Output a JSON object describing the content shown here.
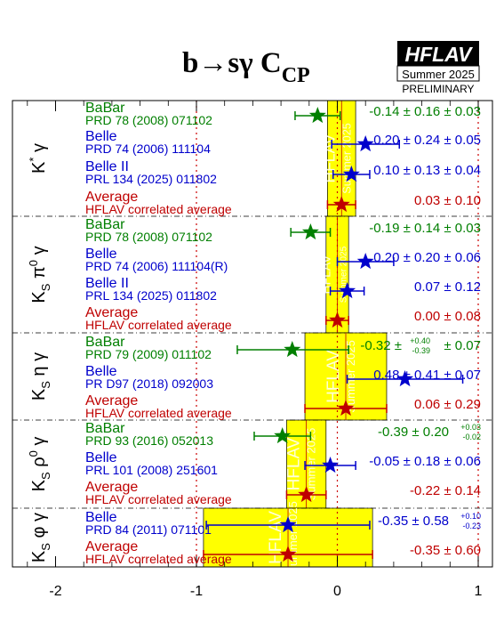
{
  "header": {
    "title_main": "b→sγ C",
    "title_sub": "CP",
    "logo_text": "HFLAV",
    "logo_season": "Summer 2025",
    "logo_status": "PRELIMINARY"
  },
  "chart_data": {
    "type": "forest",
    "xlim": [
      -2.3,
      1.25
    ],
    "x_ticks": [
      -2,
      -1,
      0,
      1
    ],
    "x_tick_labels": [
      "-2",
      "-1",
      "0",
      "1"
    ],
    "reference_lines": [
      -1,
      0,
      1
    ],
    "band_watermark": [
      "HFLAV",
      "Summer 2025"
    ],
    "groups": [
      {
        "label": "K* γ",
        "label_parts": {
          "base": "K",
          "sup": "*",
          "tail": " γ"
        },
        "band": {
          "center": 0.03,
          "err": 0.1
        },
        "entries": [
          {
            "experiment": "BaBar",
            "ref": "PRD 78 (2008) 071102",
            "value": -0.14,
            "stat": 0.16,
            "syst": 0.03,
            "result_text": "-0.14 ± 0.16 ± 0.03",
            "color": "#007f00",
            "marker": "star"
          },
          {
            "experiment": "Belle",
            "ref": "PRD 74 (2006) 111104",
            "value": 0.2,
            "stat": 0.24,
            "syst": 0.05,
            "result_text": "0.20 ± 0.24 ± 0.05",
            "color": "#0000cc",
            "marker": "star"
          },
          {
            "experiment": "Belle II",
            "ref": "PRL 134 (2025) 011802",
            "value": 0.1,
            "stat": 0.13,
            "syst": 0.04,
            "result_text": "0.10 ± 0.13 ± 0.04",
            "color": "#0000cc",
            "marker": "star"
          },
          {
            "experiment": "Average",
            "ref": "HFLAV correlated average",
            "value": 0.03,
            "stat": 0.1,
            "syst": 0,
            "result_text": "0.03 ± 0.10",
            "color": "#bf0000",
            "marker": "star"
          }
        ]
      },
      {
        "label": "K_S π^0 γ",
        "label_parts": {
          "base": "K",
          "sub": "S",
          "mid": " π",
          "sup": "0",
          "tail": " γ"
        },
        "band": {
          "center": 0.0,
          "err": 0.08
        },
        "entries": [
          {
            "experiment": "BaBar",
            "ref": "PRD 78 (2008) 071102",
            "value": -0.19,
            "stat": 0.14,
            "syst": 0.03,
            "result_text": "-0.19 ± 0.14 ± 0.03",
            "color": "#007f00",
            "marker": "star"
          },
          {
            "experiment": "Belle",
            "ref": "PRD 74 (2006) 111104(R)",
            "value": 0.2,
            "stat": 0.2,
            "syst": 0.06,
            "result_text": "0.20 ± 0.20 ± 0.06",
            "color": "#0000cc",
            "marker": "star"
          },
          {
            "experiment": "Belle II",
            "ref": "PRL 134 (2025) 011802",
            "value": 0.07,
            "stat": 0.12,
            "syst": 0,
            "result_text": "0.07 ± 0.12",
            "color": "#0000cc",
            "marker": "star"
          },
          {
            "experiment": "Average",
            "ref": "HFLAV correlated average",
            "value": 0.0,
            "stat": 0.08,
            "syst": 0,
            "result_text": "0.00 ± 0.08",
            "color": "#bf0000",
            "marker": "star"
          }
        ]
      },
      {
        "label": "K_S η γ",
        "label_parts": {
          "base": "K",
          "sub": "S",
          "mid": " η γ"
        },
        "band": {
          "center": 0.06,
          "err": 0.29
        },
        "entries": [
          {
            "experiment": "BaBar",
            "ref": "PRD 79 (2009) 011102",
            "value": -0.32,
            "stat_plus": 0.4,
            "stat_minus": 0.39,
            "syst": 0.07,
            "result_text": "-0.32 ±",
            "result_sup": "+0.40",
            "result_sub": "-0.39",
            "result_tail": " ± 0.07",
            "color": "#007f00",
            "marker": "star"
          },
          {
            "experiment": "Belle",
            "ref": "PR D97 (2018) 092003",
            "value": 0.48,
            "stat": 0.41,
            "syst": 0.07,
            "result_text": "0.48 ± 0.41 ± 0.07",
            "color": "#0000cc",
            "marker": "star"
          },
          {
            "experiment": "Average",
            "ref": "HFLAV correlated average",
            "value": 0.06,
            "stat": 0.29,
            "syst": 0,
            "result_text": "0.06 ± 0.29",
            "color": "#bf0000",
            "marker": "star"
          }
        ]
      },
      {
        "label": "K_S ρ^0 γ",
        "label_parts": {
          "base": "K",
          "sub": "S",
          "mid": " ρ",
          "sup": "0",
          "tail": " γ"
        },
        "band": {
          "center": -0.22,
          "err": 0.14
        },
        "entries": [
          {
            "experiment": "BaBar",
            "ref": "PRD 93 (2016) 052013",
            "value": -0.39,
            "stat": 0.2,
            "syst_plus": 0.03,
            "syst_minus": 0.02,
            "result_text": "-0.39 ± 0.20",
            "result_sup": "+0.03",
            "result_sub": "-0.02",
            "color": "#007f00",
            "marker": "star"
          },
          {
            "experiment": "Belle",
            "ref": "PRL 101 (2008) 251601",
            "value": -0.05,
            "stat": 0.18,
            "syst": 0.06,
            "result_text": "-0.05 ± 0.18 ± 0.06",
            "color": "#0000cc",
            "marker": "star"
          },
          {
            "experiment": "Average",
            "ref": "HFLAV correlated average",
            "value": -0.22,
            "stat": 0.14,
            "syst": 0,
            "result_text": "-0.22 ± 0.14",
            "color": "#bf0000",
            "marker": "star"
          }
        ]
      },
      {
        "label": "K_S φ γ",
        "label_parts": {
          "base": "K",
          "sub": "S",
          "mid": " φ γ"
        },
        "band": {
          "center": -0.35,
          "err": 0.6
        },
        "entries": [
          {
            "experiment": "Belle",
            "ref": "PRD 84 (2011) 071101",
            "value": -0.35,
            "stat": 0.58,
            "syst_plus": 0.1,
            "syst_minus": 0.23,
            "result_text": "-0.35 ± 0.58",
            "result_sup": "+0.10",
            "result_sub": "-0.23",
            "color": "#0000cc",
            "marker": "star"
          },
          {
            "experiment": "Average",
            "ref": "HFLAV correlated average",
            "value": -0.35,
            "stat": 0.6,
            "syst": 0,
            "result_text": "-0.35 ± 0.60",
            "color": "#bf0000",
            "marker": "star"
          }
        ]
      }
    ]
  }
}
